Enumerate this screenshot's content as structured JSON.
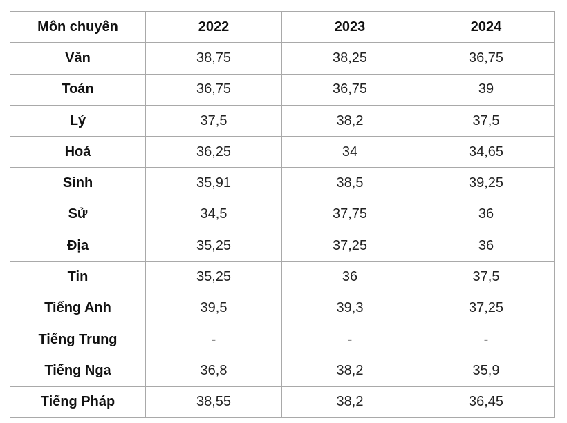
{
  "table": {
    "headers": [
      "Môn chuyên",
      "2022",
      "2023",
      "2024"
    ],
    "rows": [
      {
        "subject": "Văn",
        "values": [
          "38,75",
          "38,25",
          "36,75"
        ]
      },
      {
        "subject": "Toán",
        "values": [
          "36,75",
          "36,75",
          "39"
        ]
      },
      {
        "subject": "Lý",
        "values": [
          "37,5",
          "38,2",
          "37,5"
        ]
      },
      {
        "subject": "Hoá",
        "values": [
          "36,25",
          "34",
          "34,65"
        ]
      },
      {
        "subject": "Sinh",
        "values": [
          "35,91",
          "38,5",
          "39,25"
        ]
      },
      {
        "subject": "Sử",
        "values": [
          "34,5",
          "37,75",
          "36"
        ]
      },
      {
        "subject": "Địa",
        "values": [
          "35,25",
          "37,25",
          "36"
        ]
      },
      {
        "subject": "Tin",
        "values": [
          "35,25",
          "36",
          "37,5"
        ]
      },
      {
        "subject": "Tiếng Anh",
        "values": [
          "39,5",
          "39,3",
          "37,25"
        ]
      },
      {
        "subject": "Tiếng Trung",
        "values": [
          "-",
          "-",
          "-"
        ]
      },
      {
        "subject": "Tiếng Nga",
        "values": [
          "36,8",
          "38,2",
          "35,9"
        ]
      },
      {
        "subject": "Tiếng Pháp",
        "values": [
          "38,55",
          "38,2",
          "36,45"
        ]
      }
    ]
  }
}
